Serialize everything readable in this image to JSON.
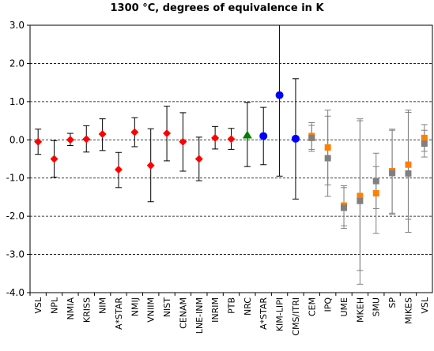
{
  "chart_data": {
    "type": "scatter",
    "title": "1300 °C, degrees of equivalence in K",
    "xlabel": "",
    "ylabel": "",
    "ylim": [
      -4.0,
      3.0
    ],
    "yticks": [
      "3.0",
      "2.0",
      "1.0",
      "0.0",
      "-1.0",
      "-2.0",
      "-3.0",
      "-4.0"
    ],
    "ytick_values": [
      3,
      2,
      1,
      0,
      -1,
      -2,
      -3,
      -4
    ],
    "grid": "horizontal dashed at 1 K steps",
    "categories": [
      "VSL",
      "NPL",
      "NMIA",
      "KRISS",
      "NIM",
      "A*STAR",
      "NMIJ",
      "VNIIM",
      "NIST",
      "CENAM",
      "LNE-INM",
      "INRIM",
      "PTB",
      "NRC",
      "A*STAR",
      "KIM-LIPI",
      "CMS/ITRI",
      "CEM",
      "IPQ",
      "UME",
      "MKEH",
      "SMU",
      "SP",
      "MIKES",
      "VSL"
    ],
    "series": [
      {
        "marker": "diamond",
        "color": "#ff0000",
        "points": [
          {
            "i": 0,
            "y": -0.05,
            "lo": -0.38,
            "hi": 0.28
          },
          {
            "i": 1,
            "y": -0.5,
            "lo": -0.98,
            "hi": -0.02
          },
          {
            "i": 2,
            "y": 0.0,
            "lo": -0.15,
            "hi": 0.17
          },
          {
            "i": 3,
            "y": 0.02,
            "lo": -0.32,
            "hi": 0.37
          },
          {
            "i": 4,
            "y": 0.15,
            "lo": -0.28,
            "hi": 0.55
          },
          {
            "i": 5,
            "y": -0.78,
            "lo": -1.25,
            "hi": -0.33
          },
          {
            "i": 6,
            "y": 0.2,
            "lo": -0.18,
            "hi": 0.58
          },
          {
            "i": 7,
            "y": -0.67,
            "lo": -1.62,
            "hi": 0.29
          },
          {
            "i": 8,
            "y": 0.17,
            "lo": -0.55,
            "hi": 0.88
          },
          {
            "i": 9,
            "y": -0.05,
            "lo": -0.82,
            "hi": 0.71
          },
          {
            "i": 10,
            "y": -0.5,
            "lo": -1.07,
            "hi": 0.07
          },
          {
            "i": 11,
            "y": 0.05,
            "lo": -0.24,
            "hi": 0.35
          },
          {
            "i": 12,
            "y": 0.02,
            "lo": -0.25,
            "hi": 0.3
          }
        ]
      },
      {
        "marker": "triangle",
        "color": "#008000",
        "points": [
          {
            "i": 13,
            "y": 0.12,
            "lo": -0.7,
            "hi": 0.98
          }
        ]
      },
      {
        "marker": "circle",
        "color": "#0000ff",
        "points": [
          {
            "i": 14,
            "y": 0.1,
            "lo": -0.65,
            "hi": 0.85
          },
          {
            "i": 15,
            "y": 1.17,
            "lo": -0.95,
            "hi": 3.0
          },
          {
            "i": 16,
            "y": 0.03,
            "lo": -1.55,
            "hi": 1.6
          }
        ]
      },
      {
        "marker": "square",
        "color": "#ff8000",
        "offset": 0,
        "points": [
          {
            "i": 17,
            "y": 0.1,
            "lo": -0.25,
            "hi": 0.45
          },
          {
            "i": 18,
            "y": -0.2,
            "lo": -1.18,
            "hi": 0.78
          },
          {
            "i": 19,
            "y": -1.72,
            "lo": -2.25,
            "hi": -1.2
          },
          {
            "i": 20,
            "y": -1.47,
            "lo": -3.42,
            "hi": 0.55
          },
          {
            "i": 21,
            "y": -1.4,
            "lo": -2.45,
            "hi": -0.35
          },
          {
            "i": 22,
            "y": -0.82,
            "lo": -1.92,
            "hi": 0.28
          },
          {
            "i": 23,
            "y": -0.65,
            "lo": -2.08,
            "hi": 0.78
          },
          {
            "i": 24,
            "y": 0.05,
            "lo": -0.3,
            "hi": 0.4
          }
        ]
      },
      {
        "marker": "square",
        "color": "#808080",
        "offset": 0,
        "points": [
          {
            "i": 17,
            "y": 0.05,
            "lo": -0.3,
            "hi": 0.38
          },
          {
            "i": 18,
            "y": -0.48,
            "lo": -1.48,
            "hi": 0.62
          },
          {
            "i": 19,
            "y": -1.78,
            "lo": -2.32,
            "hi": -1.25
          },
          {
            "i": 20,
            "y": -1.6,
            "lo": -3.78,
            "hi": 0.5
          },
          {
            "i": 21,
            "y": -1.08,
            "lo": -1.8,
            "hi": -0.7
          },
          {
            "i": 22,
            "y": -0.87,
            "lo": -1.95,
            "hi": 0.25
          },
          {
            "i": 23,
            "y": -0.88,
            "lo": -2.42,
            "hi": 0.72
          },
          {
            "i": 24,
            "y": -0.1,
            "lo": -0.45,
            "hi": 0.25
          }
        ]
      }
    ]
  }
}
